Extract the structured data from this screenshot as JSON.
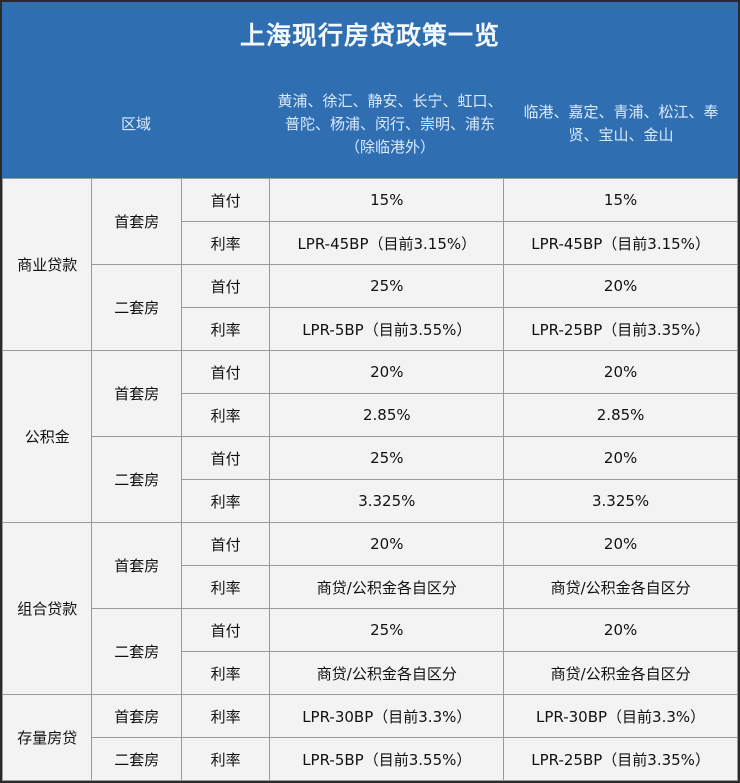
{
  "title": "上海现行房贷政策一览",
  "header": {
    "region": "区域",
    "col1": "黄浦、徐汇、静安、长宁、虹口、普陀、杨浦、闵行、崇明、浦东（除临港外）",
    "col2": "临港、嘉定、青浦、松江、奉贤、宝山、金山"
  },
  "groups": [
    {
      "name": "商业贷款",
      "subs": [
        {
          "name": "首套房",
          "rows": [
            {
              "k": "首付",
              "a": "15%",
              "b": "15%"
            },
            {
              "k": "利率",
              "a": "LPR-45BP（目前3.15%）",
              "b": "LPR-45BP（目前3.15%）"
            }
          ]
        },
        {
          "name": "二套房",
          "rows": [
            {
              "k": "首付",
              "a": "25%",
              "b": "20%"
            },
            {
              "k": "利率",
              "a": "LPR-5BP（目前3.55%）",
              "b": "LPR-25BP（目前3.35%）"
            }
          ]
        }
      ]
    },
    {
      "name": "公积金",
      "subs": [
        {
          "name": "首套房",
          "rows": [
            {
              "k": "首付",
              "a": "20%",
              "b": "20%"
            },
            {
              "k": "利率",
              "a": "2.85%",
              "b": "2.85%"
            }
          ]
        },
        {
          "name": "二套房",
          "rows": [
            {
              "k": "首付",
              "a": "25%",
              "b": "20%"
            },
            {
              "k": "利率",
              "a": "3.325%",
              "b": "3.325%"
            }
          ]
        }
      ]
    },
    {
      "name": "组合贷款",
      "subs": [
        {
          "name": "首套房",
          "rows": [
            {
              "k": "首付",
              "a": "20%",
              "b": "20%"
            },
            {
              "k": "利率",
              "a": "商贷/公积金各自区分",
              "b": "商贷/公积金各自区分"
            }
          ]
        },
        {
          "name": "二套房",
          "rows": [
            {
              "k": "首付",
              "a": "25%",
              "b": "20%"
            },
            {
              "k": "利率",
              "a": "商贷/公积金各自区分",
              "b": "商贷/公积金各自区分"
            }
          ]
        }
      ]
    },
    {
      "name": "存量房贷",
      "subs": [
        {
          "name": "首套房",
          "rows": [
            {
              "k": "利率",
              "a": "LPR-30BP（目前3.3%）",
              "b": "LPR-30BP（目前3.3%）"
            }
          ]
        },
        {
          "name": "二套房",
          "rows": [
            {
              "k": "利率",
              "a": "LPR-5BP（目前3.55%）",
              "b": "LPR-25BP（目前3.35%）"
            }
          ]
        }
      ]
    }
  ]
}
